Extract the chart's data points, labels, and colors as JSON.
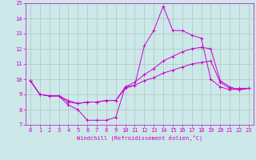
{
  "xlabel": "Windchill (Refroidissement éolien,°C)",
  "bg_color": "#cce8e8",
  "grid_color": "#aabbbb",
  "line_color": "#cc00cc",
  "xlim": [
    -0.5,
    23.5
  ],
  "ylim": [
    7,
    15
  ],
  "xticks": [
    0,
    1,
    2,
    3,
    4,
    5,
    6,
    7,
    8,
    9,
    10,
    11,
    12,
    13,
    14,
    15,
    16,
    17,
    18,
    19,
    20,
    21,
    22,
    23
  ],
  "yticks": [
    7,
    8,
    9,
    10,
    11,
    12,
    13,
    14,
    15
  ],
  "line1_x": [
    0,
    1,
    2,
    3,
    4,
    5,
    6,
    7,
    8,
    9,
    10,
    11,
    12,
    13,
    14,
    15,
    16,
    17,
    18,
    19,
    20,
    21,
    22,
    23
  ],
  "line1_y": [
    9.9,
    9.0,
    8.9,
    8.9,
    8.3,
    8.0,
    7.3,
    7.3,
    7.3,
    7.5,
    9.5,
    9.6,
    12.2,
    13.2,
    14.8,
    13.2,
    13.2,
    12.9,
    12.7,
    10.0,
    9.5,
    9.3,
    9.4,
    9.4
  ],
  "line2_x": [
    0,
    1,
    2,
    3,
    4,
    5,
    6,
    7,
    8,
    9,
    10,
    11,
    12,
    13,
    14,
    15,
    16,
    17,
    18,
    19,
    20,
    21,
    22,
    23
  ],
  "line2_y": [
    9.9,
    9.0,
    8.9,
    8.9,
    8.6,
    8.4,
    8.5,
    8.5,
    8.6,
    8.6,
    9.5,
    9.8,
    10.3,
    10.7,
    11.2,
    11.5,
    11.8,
    12.0,
    12.1,
    12.0,
    9.9,
    9.5,
    9.3,
    9.4
  ],
  "line3_x": [
    0,
    1,
    2,
    3,
    4,
    5,
    6,
    7,
    8,
    9,
    10,
    11,
    12,
    13,
    14,
    15,
    16,
    17,
    18,
    19,
    20,
    21,
    22,
    23
  ],
  "line3_y": [
    9.9,
    9.0,
    8.9,
    8.9,
    8.5,
    8.4,
    8.5,
    8.5,
    8.6,
    8.6,
    9.4,
    9.6,
    9.9,
    10.1,
    10.4,
    10.6,
    10.8,
    11.0,
    11.1,
    11.2,
    9.8,
    9.4,
    9.3,
    9.4
  ]
}
